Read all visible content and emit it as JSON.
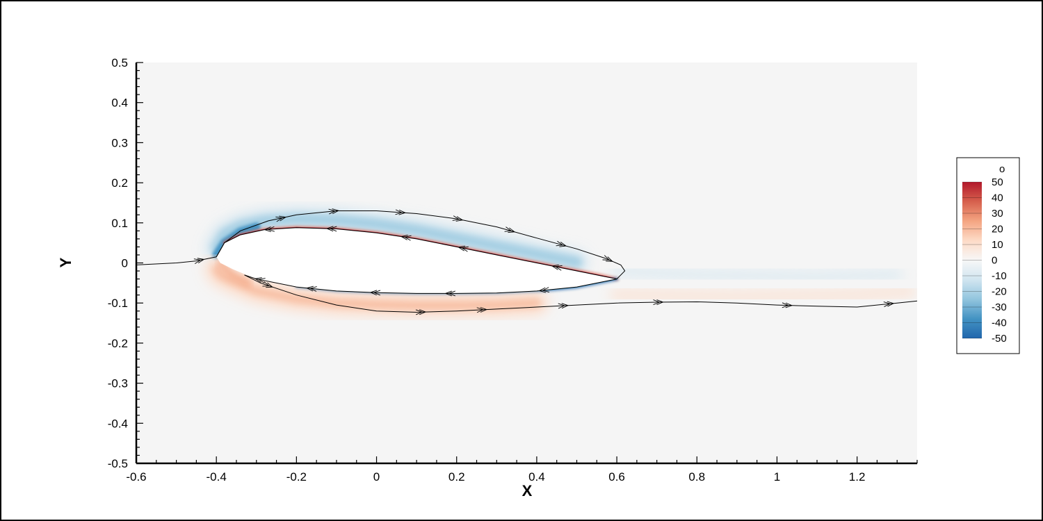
{
  "chart_data": {
    "type": "heatmap",
    "xlabel": "X",
    "ylabel": "Y",
    "xlim": [
      -0.6,
      1.35
    ],
    "ylim": [
      -0.5,
      0.5
    ],
    "x_ticks": [
      "-0.6",
      "-0.4",
      "-0.2",
      "0",
      "0.2",
      "0.4",
      "0.6",
      "0.8",
      "1",
      "1.2"
    ],
    "y_ticks": [
      "0.5",
      "0.4",
      "0.3",
      "0.2",
      "0.1",
      "0",
      "-0.1",
      "-0.2",
      "-0.3",
      "-0.4",
      "-0.5"
    ],
    "x_tick_values": [
      -0.6,
      -0.4,
      -0.2,
      0,
      0.2,
      0.4,
      0.6,
      0.8,
      1,
      1.2
    ],
    "y_tick_values": [
      0.5,
      0.4,
      0.3,
      0.2,
      0.1,
      0,
      -0.1,
      -0.2,
      -0.3,
      -0.4,
      -0.5
    ],
    "colorbar": {
      "title": "o",
      "range": [
        -50,
        50
      ],
      "labels": [
        "50",
        "40",
        "30",
        "20",
        "10",
        "0",
        "-10",
        "-20",
        "-30",
        "-40",
        "-50"
      ],
      "values": [
        50,
        40,
        30,
        20,
        10,
        0,
        -10,
        -20,
        -30,
        -40,
        -50
      ],
      "colors": [
        "#b2182b",
        "#d6604d",
        "#f4a582",
        "#fddbc7",
        "#f7f7f7",
        "#d1e5f0",
        "#92c5de",
        "#4393c3",
        "#2166ac"
      ]
    },
    "background_value": 0,
    "airfoil": {
      "leading_edge": [
        -0.4,
        0.015
      ],
      "trailing_edge": [
        0.6,
        -0.04
      ],
      "upper_surface": [
        [
          -0.4,
          0.015
        ],
        [
          -0.38,
          0.05
        ],
        [
          -0.34,
          0.07
        ],
        [
          -0.28,
          0.083
        ],
        [
          -0.2,
          0.088
        ],
        [
          -0.1,
          0.085
        ],
        [
          0.0,
          0.075
        ],
        [
          0.1,
          0.06
        ],
        [
          0.2,
          0.04
        ],
        [
          0.3,
          0.02
        ],
        [
          0.4,
          0.0
        ],
        [
          0.5,
          -0.02
        ],
        [
          0.6,
          -0.04
        ]
      ],
      "lower_surface": [
        [
          0.6,
          -0.04
        ],
        [
          0.5,
          -0.06
        ],
        [
          0.4,
          -0.07
        ],
        [
          0.3,
          -0.075
        ],
        [
          0.2,
          -0.076
        ],
        [
          0.1,
          -0.076
        ],
        [
          0.0,
          -0.074
        ],
        [
          -0.1,
          -0.07
        ],
        [
          -0.2,
          -0.06
        ],
        [
          -0.3,
          -0.04
        ],
        [
          -0.36,
          -0.015
        ],
        [
          -0.39,
          0.0
        ],
        [
          -0.4,
          0.015
        ]
      ]
    },
    "streamlines": [
      {
        "points": [
          [
            -0.6,
            -0.005
          ],
          [
            -0.5,
            0.0
          ],
          [
            -0.45,
            0.005
          ],
          [
            -0.4,
            0.015
          ]
        ],
        "arrows": [
          0.8
        ]
      },
      {
        "points": [
          [
            -0.4,
            0.015
          ],
          [
            -0.38,
            0.05
          ],
          [
            -0.34,
            0.08
          ],
          [
            -0.27,
            0.105
          ],
          [
            -0.2,
            0.12
          ],
          [
            -0.1,
            0.13
          ],
          [
            0.0,
            0.13
          ],
          [
            0.1,
            0.123
          ],
          [
            0.2,
            0.11
          ],
          [
            0.3,
            0.09
          ],
          [
            0.4,
            0.062
          ],
          [
            0.5,
            0.035
          ],
          [
            0.57,
            0.012
          ],
          [
            0.61,
            -0.005
          ],
          [
            0.62,
            -0.02
          ],
          [
            0.6,
            -0.04
          ]
        ],
        "arrows": [
          0.18,
          0.3,
          0.45,
          0.58,
          0.7,
          0.82,
          0.93
        ]
      },
      {
        "points": [
          [
            0.6,
            -0.04
          ],
          [
            0.5,
            -0.02
          ],
          [
            0.4,
            0.0
          ],
          [
            0.3,
            0.02
          ],
          [
            0.2,
            0.04
          ],
          [
            0.1,
            0.06
          ],
          [
            0.0,
            0.075
          ],
          [
            -0.1,
            0.085
          ],
          [
            -0.2,
            0.088
          ],
          [
            -0.28,
            0.083
          ],
          [
            -0.34,
            0.07
          ],
          [
            -0.38,
            0.05
          ],
          [
            -0.4,
            0.015
          ]
        ],
        "arrows": [
          0.15,
          0.38,
          0.52,
          0.7,
          0.85
        ]
      },
      {
        "points": [
          [
            0.6,
            -0.04
          ],
          [
            0.5,
            -0.06
          ],
          [
            0.4,
            -0.07
          ],
          [
            0.3,
            -0.075
          ],
          [
            0.2,
            -0.076
          ],
          [
            0.1,
            -0.076
          ],
          [
            0.0,
            -0.074
          ],
          [
            -0.1,
            -0.07
          ],
          [
            -0.2,
            -0.06
          ],
          [
            -0.3,
            -0.04
          ],
          [
            -0.33,
            -0.03
          ]
        ],
        "arrows": [
          0.2,
          0.45,
          0.65,
          0.82,
          0.96
        ]
      },
      {
        "points": [
          [
            -0.33,
            -0.03
          ],
          [
            -0.29,
            -0.05
          ],
          [
            -0.2,
            -0.08
          ],
          [
            -0.1,
            -0.105
          ],
          [
            0.0,
            -0.12
          ],
          [
            0.1,
            -0.123
          ],
          [
            0.2,
            -0.12
          ],
          [
            0.3,
            -0.115
          ],
          [
            0.4,
            -0.11
          ],
          [
            0.5,
            -0.105
          ],
          [
            0.6,
            -0.1
          ],
          [
            0.7,
            -0.098
          ],
          [
            0.8,
            -0.097
          ],
          [
            0.9,
            -0.1
          ],
          [
            1.0,
            -0.105
          ],
          [
            1.1,
            -0.108
          ],
          [
            1.2,
            -0.11
          ],
          [
            1.3,
            -0.1
          ],
          [
            1.35,
            -0.095
          ]
        ],
        "arrows": [
          0.04,
          0.27,
          0.36,
          0.48,
          0.62,
          0.81,
          0.96
        ]
      }
    ]
  }
}
